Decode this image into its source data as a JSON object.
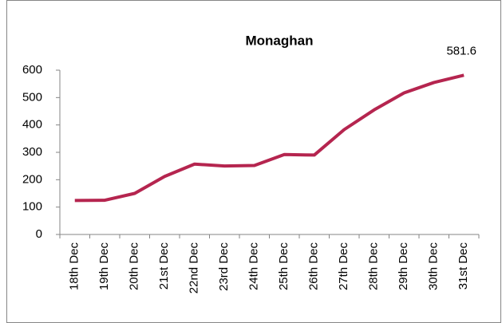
{
  "chart_data": {
    "type": "line",
    "title": "Monaghan",
    "categories": [
      "18th Dec",
      "19th Dec",
      "20th Dec",
      "21st Dec",
      "22nd Dec",
      "23rd Dec",
      "24th Dec",
      "25th Dec",
      "26th Dec",
      "27th Dec",
      "28th Dec",
      "29th Dec",
      "30th Dec",
      "31st Dec"
    ],
    "values": [
      124,
      125,
      150,
      212,
      257,
      250,
      252,
      292,
      290,
      383,
      455,
      517,
      555,
      581.6
    ],
    "color": "#b5254f",
    "ylim": [
      0,
      600
    ],
    "yticks": [
      0,
      100,
      200,
      300,
      400,
      500,
      600
    ],
    "grid": false
  }
}
